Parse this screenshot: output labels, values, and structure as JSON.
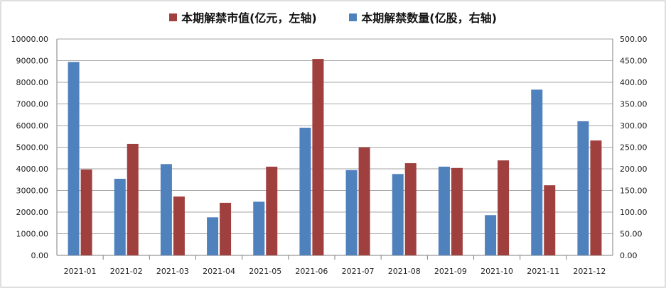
{
  "chart_data": {
    "type": "bar",
    "categories": [
      "2021-01",
      "2021-02",
      "2021-03",
      "2021-04",
      "2021-05",
      "2021-06",
      "2021-07",
      "2021-08",
      "2021-09",
      "2021-10",
      "2021-11",
      "2021-12"
    ],
    "series": [
      {
        "name": "本期解禁数量(亿股，右轴)",
        "axis": "right",
        "color": "#4f81bd",
        "values": [
          447,
          177,
          211,
          88,
          124,
          295,
          197,
          188,
          205,
          93,
          383,
          310
        ]
      },
      {
        "name": "本期解禁市值(亿元，左轴)",
        "axis": "left",
        "color": "#a0403e",
        "values": [
          3970,
          5150,
          2720,
          2430,
          4100,
          9080,
          4990,
          4260,
          4040,
          4390,
          3240,
          5310
        ]
      }
    ],
    "ylim_left": [
      0,
      10000
    ],
    "ylim_right": [
      0,
      500
    ],
    "left_ticks": [
      "0.00",
      "1000.00",
      "2000.00",
      "3000.00",
      "4000.00",
      "5000.00",
      "6000.00",
      "7000.00",
      "8000.00",
      "9000.00",
      "10000.00"
    ],
    "right_ticks": [
      "0.00",
      "50.00",
      "100.00",
      "150.00",
      "200.00",
      "250.00",
      "300.00",
      "350.00",
      "400.00",
      "450.00",
      "500.00"
    ],
    "grid": true,
    "legend_position": "top",
    "legend": [
      {
        "label": "本期解禁市值(亿元，左轴)",
        "color": "#a0403e"
      },
      {
        "label": "本期解禁数量(亿股，右轴)",
        "color": "#4f81bd"
      }
    ]
  }
}
